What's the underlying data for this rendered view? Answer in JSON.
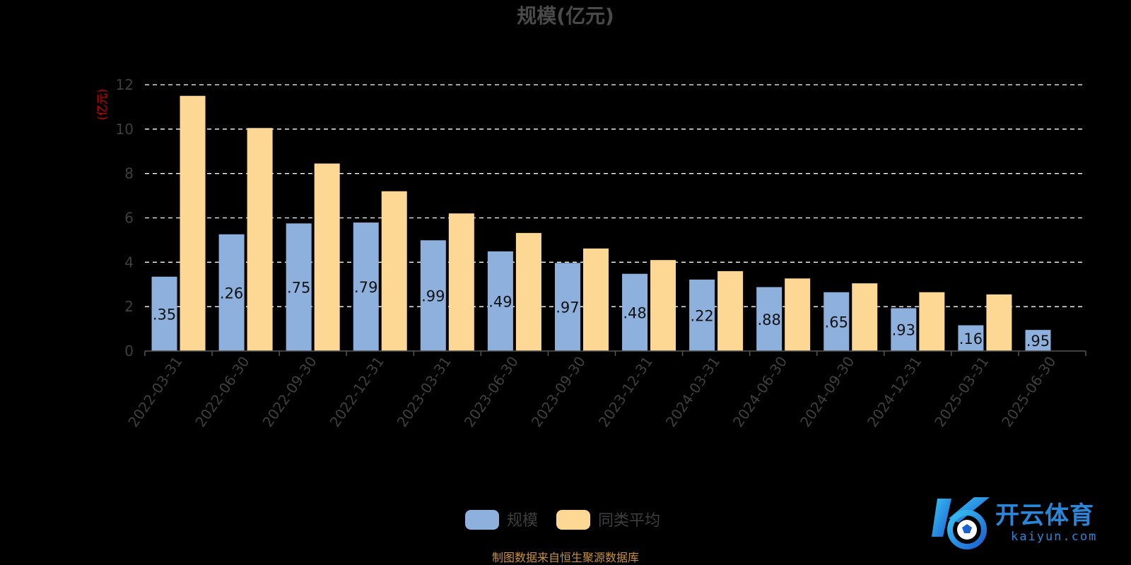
{
  "chart_data": {
    "type": "bar",
    "title": "规模(亿元)",
    "ylabel": "(亿元)",
    "ylim": [
      0,
      12
    ],
    "yticks": [
      "0",
      "2",
      "4",
      "6",
      "8",
      "10",
      "12"
    ],
    "grid": true,
    "legend_position": "bottom-center",
    "categories": [
      "2022-03-31",
      "2022-06-30",
      "2022-09-30",
      "2022-12-31",
      "2023-03-31",
      "2023-06-30",
      "2023-09-30",
      "2023-12-31",
      "2024-03-31",
      "2024-06-30",
      "2024-09-30",
      "2024-12-31",
      "2025-03-31",
      "2025-06-30"
    ],
    "series": [
      {
        "name": "规模",
        "color": "#8eb0dd",
        "values": [
          3.35,
          5.26,
          5.75,
          5.79,
          4.99,
          4.49,
          3.97,
          3.48,
          3.22,
          2.88,
          2.65,
          1.93,
          1.16,
          0.95
        ],
        "labels": [
          ".35",
          ".26",
          ".75",
          ".79",
          ".99",
          ".49",
          ".97",
          ".48",
          ".22",
          ".88",
          ".65",
          ".93",
          ".16",
          ".95"
        ]
      },
      {
        "name": "同类平均",
        "color": "#fcd894",
        "values": [
          11.5,
          10.05,
          8.45,
          7.2,
          6.2,
          5.32,
          4.62,
          4.1,
          3.6,
          3.27,
          3.05,
          2.65,
          2.55,
          null
        ]
      }
    ]
  },
  "source_note": "制图数据来自恒生聚源数据库",
  "watermark": {
    "cn": "开云体育",
    "en": "kaiyun.com"
  }
}
